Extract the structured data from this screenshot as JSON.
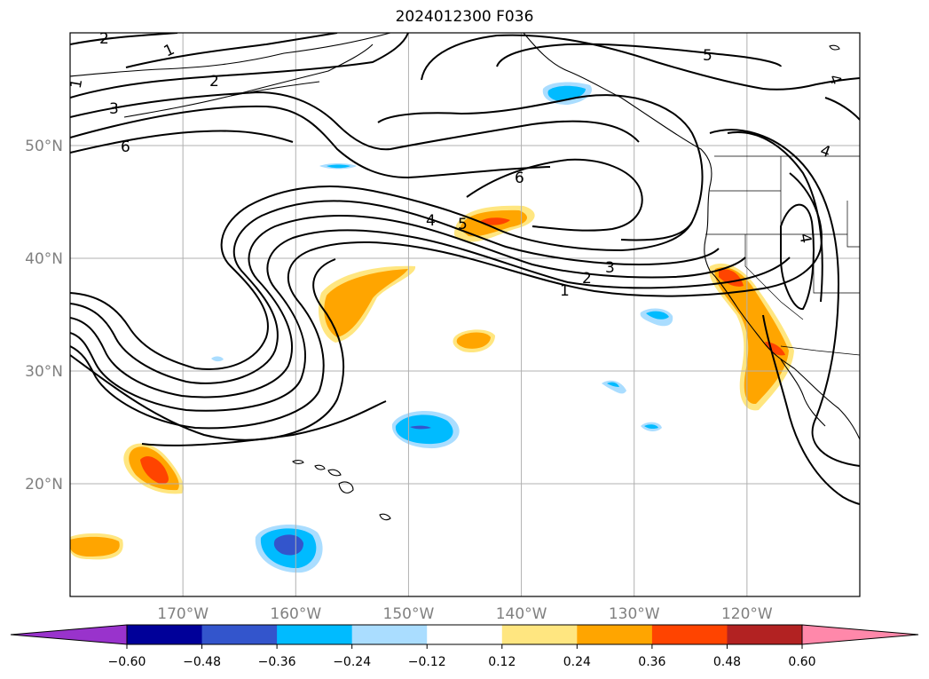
{
  "title": "2024012300 F036",
  "map": {
    "lat_labels": [
      {
        "text": "50°N",
        "lat": 50
      },
      {
        "text": "40°N",
        "lat": 40
      },
      {
        "text": "30°N",
        "lat": 30
      },
      {
        "text": "20°N",
        "lat": 20
      }
    ],
    "lon_labels": [
      {
        "text": "170°W",
        "lon": -170
      },
      {
        "text": "160°W",
        "lon": -160
      },
      {
        "text": "150°W",
        "lon": -150
      },
      {
        "text": "140°W",
        "lon": -140
      },
      {
        "text": "130°W",
        "lon": -130
      },
      {
        "text": "120°W",
        "lon": -120
      }
    ],
    "extent": {
      "lon_min": -180,
      "lon_max": -110,
      "lat_min": 10,
      "lat_max": 60
    },
    "gridlines": true,
    "contour_labels": [
      "2",
      "1",
      "1",
      "2",
      "3",
      "6",
      "5",
      "4",
      "6",
      "5",
      "4",
      "3",
      "2",
      "1",
      "4",
      "4"
    ]
  },
  "colorbar": {
    "ticks": [
      "−0.60",
      "−0.48",
      "−0.36",
      "−0.24",
      "−0.12",
      "0.12",
      "0.24",
      "0.36",
      "0.48",
      "0.60"
    ],
    "colors": {
      "under": "#9933cc",
      "c1": "#000099",
      "c2": "#3355cc",
      "c3": "#00bbff",
      "c4": "#aaddff",
      "c5": "#ffffff",
      "c6": "#ffe680",
      "c7": "#ffa500",
      "c8": "#ff4400",
      "c9": "#b22222",
      "over": "#ff88aa"
    }
  }
}
